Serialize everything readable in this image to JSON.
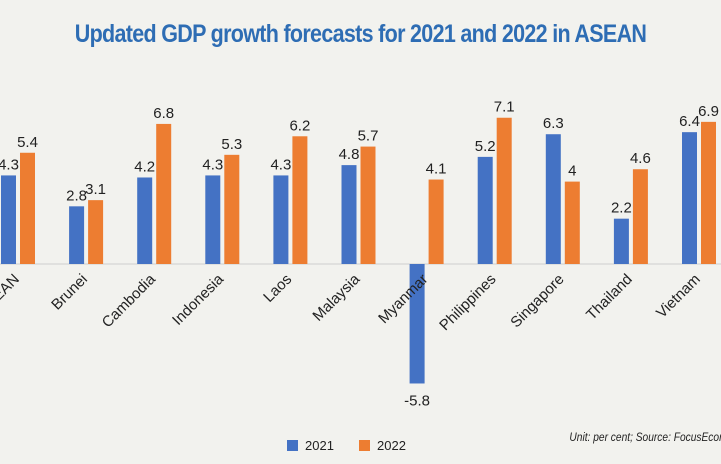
{
  "chart_data": {
    "type": "bar",
    "title": "Updated GDP growth forecasts for 2021 and 2022 in ASEAN",
    "categories": [
      "ASEAN",
      "Brunei",
      "Cambodia",
      "Indonesia",
      "Laos",
      "Malaysia",
      "Myanmar",
      "Philippines",
      "Singapore",
      "Thailand",
      "Vietnam"
    ],
    "series": [
      {
        "name": "2021",
        "color": "#4472c4",
        "values": [
          4.3,
          2.8,
          4.2,
          4.3,
          4.3,
          4.8,
          -5.8,
          5.2,
          6.3,
          2.2,
          6.4
        ]
      },
      {
        "name": "2022",
        "color": "#ed7d31",
        "values": [
          5.4,
          3.1,
          6.8,
          5.3,
          6.2,
          5.7,
          4.1,
          7.1,
          4,
          4.6,
          6.9
        ]
      }
    ],
    "data_labels": {
      "2021": [
        "4.3",
        "2.8",
        "4.2",
        "4.3",
        "4.3",
        "4.8",
        "-5.8",
        "5.2",
        "6.3",
        "2.2",
        "6.4"
      ],
      "2022": [
        "5.4",
        "3.1",
        "6.8",
        "5.3",
        "6.2",
        "5.7",
        "4.1",
        "7.1",
        "4",
        "4.6",
        "6.9"
      ]
    },
    "legend": "bottom-left",
    "grid": false,
    "note": "Unit: per cent; Source: FocusEcon"
  }
}
